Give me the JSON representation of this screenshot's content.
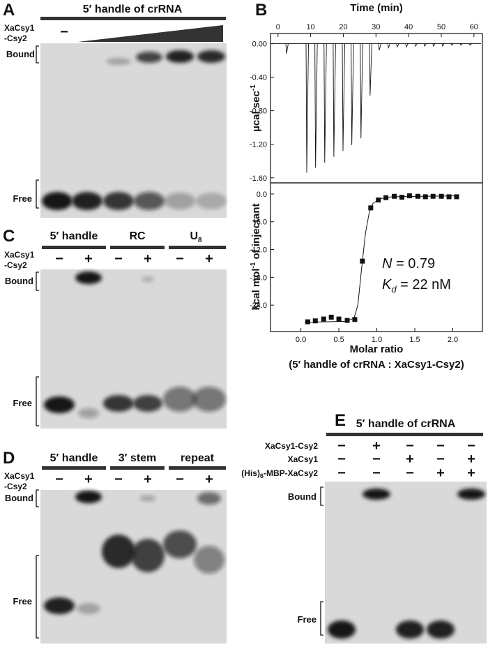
{
  "panels": {
    "A": {
      "letter": "A",
      "header": "5′ handle of crRNA",
      "row_label": [
        "XaCsy1",
        "-Csy2"
      ],
      "signs": [
        "−"
      ],
      "bound": "Bound",
      "free": "Free"
    },
    "B": {
      "letter": "B"
    },
    "C": {
      "letter": "C",
      "headers": [
        {
          "text": "5′ handle"
        },
        {
          "text": "RC"
        },
        {
          "text": "U",
          "sub": "8"
        }
      ],
      "row_label": [
        "XaCsy1",
        "-Csy2"
      ],
      "signs": [
        "−",
        "+",
        "−",
        "+",
        "−",
        "+"
      ],
      "bound": "Bound",
      "free": "Free"
    },
    "D": {
      "letter": "D",
      "headers": [
        {
          "text": "5′ handle"
        },
        {
          "text": "3′ stem"
        },
        {
          "text": "repeat"
        }
      ],
      "row_label": [
        "XaCsy1",
        "-Csy2"
      ],
      "signs": [
        "−",
        "+",
        "−",
        "+",
        "−",
        "+"
      ],
      "bound": "Bound",
      "free": "Free"
    },
    "E": {
      "letter": "E",
      "header": "5′ handle of crRNA",
      "rows": [
        {
          "label": {
            "text": "XaCsy1-Csy2"
          },
          "signs": [
            "−",
            "+",
            "−",
            "−",
            "−"
          ]
        },
        {
          "label": {
            "text": "XaCsy1"
          },
          "signs": [
            "−",
            "−",
            "+",
            "−",
            "+"
          ]
        },
        {
          "label": {
            "text": "(His)",
            "sub": "6",
            "rest": "-MBP-XaCsy2"
          },
          "signs": [
            "−",
            "−",
            "−",
            "+",
            "+"
          ]
        }
      ],
      "bound": "Bound",
      "free": "Free"
    }
  },
  "chart_data": [
    {
      "type": "thermogram",
      "x_label": "Time (min)",
      "y_label": {
        "text": "µcal sec",
        "sup": "-1"
      },
      "x_axis_position": "top",
      "x": [
        2.6,
        8.8,
        11.5,
        14.3,
        17.1,
        19.9,
        22.6,
        25.4,
        28.2,
        31.0,
        33.8,
        36.5,
        39.3,
        42.1,
        44.9,
        47.6,
        50.4,
        53.2,
        56.0,
        58.8
      ],
      "values": [
        -0.12,
        -1.54,
        -1.48,
        -1.42,
        -1.35,
        -1.28,
        -1.21,
        -1.13,
        -0.62,
        -0.08,
        -0.05,
        -0.04,
        -0.04,
        -0.03,
        -0.03,
        -0.03,
        -0.03,
        -0.02,
        -0.02,
        -0.02
      ],
      "color": "#111111",
      "xlim": [
        -2.3,
        62.6
      ],
      "ylim": [
        -1.66,
        0.12
      ],
      "xticks": [
        0,
        10,
        20,
        30,
        40,
        50,
        60
      ],
      "yticks": [
        {
          "value": 0,
          "label": "0.00"
        },
        {
          "value": -0.4,
          "label": "-0.40"
        },
        {
          "value": -0.8,
          "label": "-0.80"
        },
        {
          "value": -1.2,
          "label": "-1.20"
        },
        {
          "value": -1.6,
          "label": "-1.60"
        }
      ]
    },
    {
      "type": "scatter",
      "x_label": "Molar ratio",
      "x_label_2": "(5′ handle of crRNA : XaCsy1-Csy2)",
      "y_label": {
        "text": "kcal mol",
        "sup": "-1",
        "rest": " of injectant"
      },
      "x_axis_position": "bottom",
      "series": [
        {
          "style": "markers",
          "color": "#111111",
          "x": [
            0.09,
            0.19,
            0.3,
            0.4,
            0.5,
            0.61,
            0.71,
            0.81,
            0.92,
            1.02,
            1.12,
            1.23,
            1.33,
            1.43,
            1.54,
            1.64,
            1.74,
            1.85,
            1.95,
            2.05
          ],
          "values": [
            -27.6,
            -27.4,
            -27.0,
            -26.6,
            -27.0,
            -27.3,
            -27.1,
            -14.5,
            -3.0,
            -1.3,
            -0.8,
            -0.5,
            -0.7,
            -0.4,
            -0.5,
            -0.6,
            -0.5,
            -0.5,
            -0.6,
            -0.6
          ]
        },
        {
          "style": "line",
          "color": "#111111",
          "x": [
            0.05,
            0.6,
            0.7,
            0.75,
            0.8,
            0.85,
            0.9,
            0.95,
            1.05,
            1.2,
            2.05
          ],
          "values": [
            -27.7,
            -27.5,
            -26.8,
            -24.0,
            -16.0,
            -8.5,
            -4.0,
            -2.0,
            -1.0,
            -0.6,
            -0.4
          ]
        }
      ],
      "annotations": [
        {
          "text": "N",
          "rest": " = 0.79"
        },
        {
          "text": "K",
          "sub": "d",
          "rest": " = 22 nM"
        }
      ],
      "xlim": [
        -0.4,
        2.39
      ],
      "ylim": [
        -29.7,
        2.4
      ],
      "xticks": [
        {
          "value": 0,
          "label": "0.0"
        },
        0.5,
        {
          "value": 1,
          "label": "1.0"
        },
        1.5,
        {
          "value": 2,
          "label": "2.0"
        }
      ],
      "yticks": [
        {
          "value": 0,
          "label": "0.0"
        },
        {
          "value": -6,
          "label": "-6.0"
        },
        {
          "value": -12,
          "label": "-12.0"
        },
        {
          "value": -18,
          "label": "-18.0"
        },
        {
          "value": -24,
          "label": "-24.0"
        }
      ]
    }
  ]
}
